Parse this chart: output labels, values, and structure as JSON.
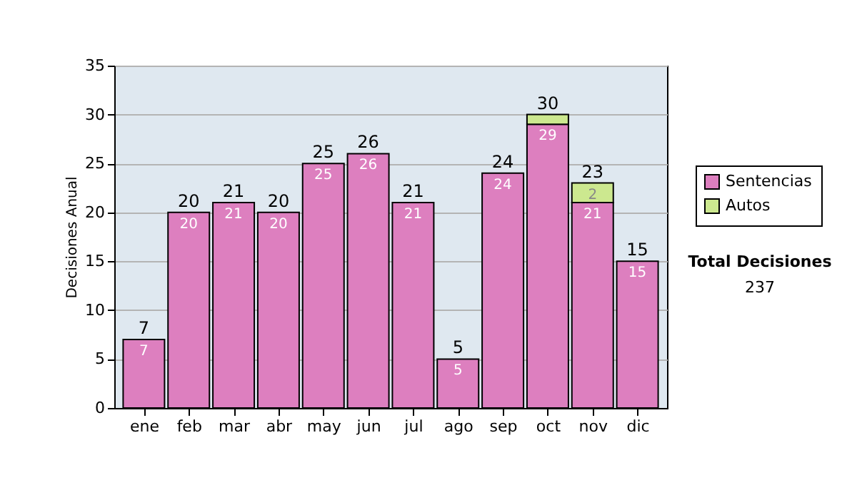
{
  "chart_data": {
    "type": "bar",
    "stacked": true,
    "ylabel": "Decisiones Anual",
    "categories": [
      "ene",
      "feb",
      "mar",
      "abr",
      "may",
      "jun",
      "jul",
      "ago",
      "sep",
      "oct",
      "nov",
      "dic"
    ],
    "series": [
      {
        "name": "Sentencias",
        "color": "#dd7fbf",
        "values": [
          7,
          20,
          21,
          20,
          25,
          26,
          21,
          5,
          24,
          29,
          21,
          15
        ],
        "value_labels": [
          "7",
          "20",
          "21",
          "20",
          "25",
          "26",
          "21",
          "5",
          "24",
          "29",
          "21",
          "15"
        ]
      },
      {
        "name": "Autos",
        "color": "#cce88f",
        "values": [
          null,
          null,
          null,
          null,
          null,
          null,
          null,
          null,
          null,
          1,
          2,
          null
        ],
        "value_labels": [
          null,
          null,
          null,
          null,
          null,
          null,
          null,
          null,
          null,
          null,
          "2",
          null
        ]
      }
    ],
    "totals": [
      "7",
      "20",
      "21",
      "20",
      "25",
      "26",
      "21",
      "5",
      "24",
      "30",
      "23",
      "15"
    ],
    "ylim": [
      0,
      35
    ],
    "yticks": [
      0,
      5,
      10,
      15,
      20,
      25,
      30,
      35
    ],
    "grid": "y",
    "legend": "right",
    "annotations": [
      "Total Decisiones",
      "237"
    ]
  }
}
